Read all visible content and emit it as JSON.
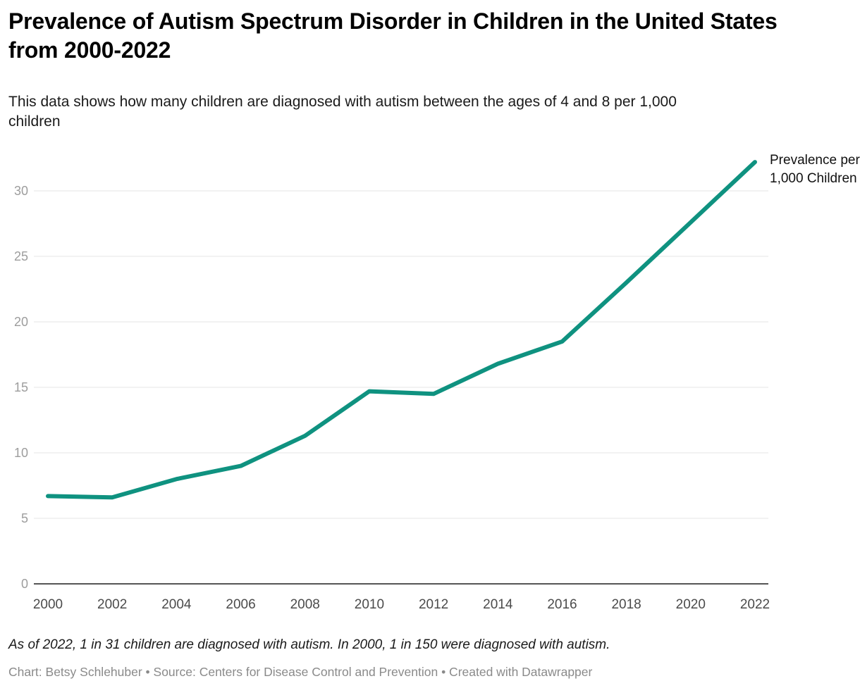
{
  "header": {
    "title": "Prevalence of Autism Spectrum Disorder in Children in the United States from 2000-2022",
    "subtitle": "This data shows how many children are diagnosed with autism between the ages of 4 and 8 per 1,000 children"
  },
  "chart_data": {
    "type": "line",
    "x": [
      2000,
      2002,
      2004,
      2006,
      2008,
      2010,
      2012,
      2014,
      2016,
      2018,
      2020,
      2022
    ],
    "series": [
      {
        "name": "Prevalence per 1,000 Children",
        "values": [
          6.7,
          6.6,
          8.0,
          9.0,
          11.3,
          14.7,
          14.5,
          16.8,
          18.5,
          23.0,
          27.6,
          32.2
        ]
      }
    ],
    "series_label": "Prevalence per 1,000 Children",
    "title": "Prevalence of Autism Spectrum Disorder in Children in the United States from 2000-2022",
    "xlabel": "",
    "ylabel": "",
    "ylim": [
      0,
      32.5
    ],
    "yticks": [
      0,
      5,
      10,
      15,
      20,
      25,
      30
    ],
    "grid": "horizontal",
    "legend_position": "end-of-line",
    "line_color": "#0f9280",
    "gridline_color": "#e4e4e4",
    "axis_line_color": "#1d1d1d",
    "ytick_color": "#9d9d9d",
    "xtick_color": "#4b4b4b"
  },
  "footer": {
    "note": "As of 2022, 1 in 31 children are diagnosed with autism. In 2000, 1 in 150 were diagnosed with autism.",
    "credit": "Chart: Betsy Schlehuber • Source: Centers for Disease Control and Prevention • Created with Datawrapper"
  }
}
